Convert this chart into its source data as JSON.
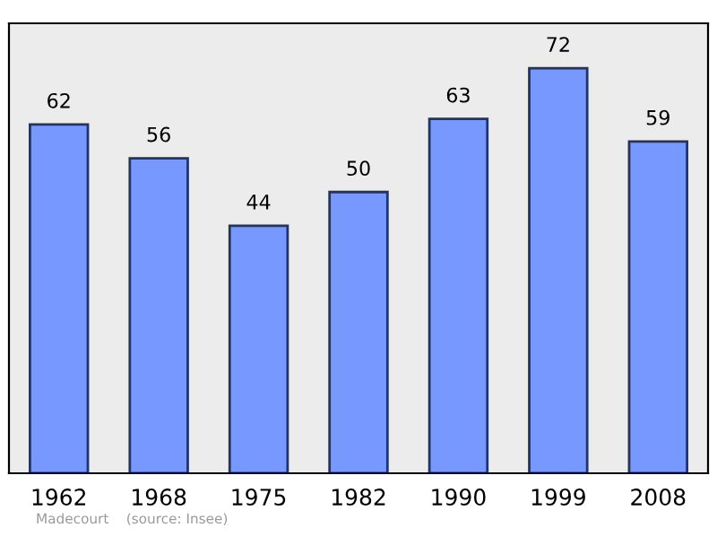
{
  "chart_data": {
    "type": "bar",
    "categories": [
      "1962",
      "1968",
      "1975",
      "1982",
      "1990",
      "1999",
      "2008"
    ],
    "values": [
      62,
      56,
      44,
      50,
      63,
      72,
      59
    ],
    "color": "#7799ff",
    "data_labels": true,
    "ylim": [
      0,
      80
    ],
    "tick_labels": "x",
    "grid": false,
    "legend": false,
    "annotations": [
      "Madecourt    (source: Insee)"
    ]
  }
}
